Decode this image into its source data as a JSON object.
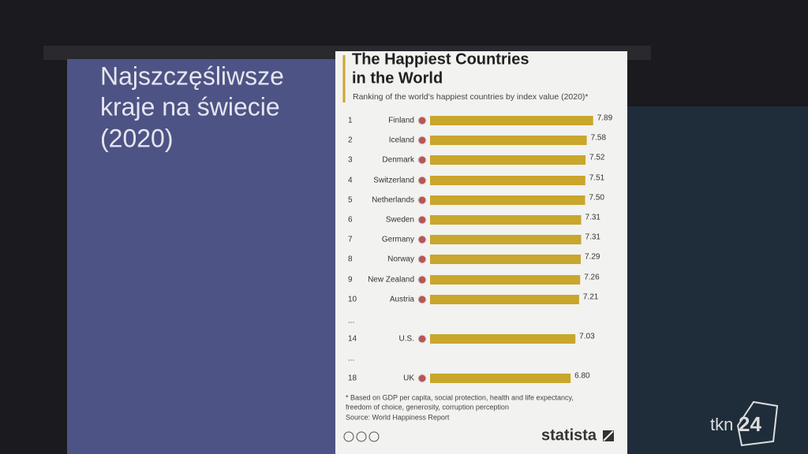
{
  "slide": {
    "title_lines": [
      "Najszczęśliwsze",
      "kraje na świecie",
      "(2020)"
    ]
  },
  "chart_data": {
    "type": "bar",
    "orientation": "horizontal",
    "title_lines": [
      "The Happiest Countries",
      "in the World"
    ],
    "subtitle": "Ranking of the world's happiest countries by index value (2020)*",
    "ranks": [
      "1",
      "2",
      "3",
      "4",
      "5",
      "6",
      "7",
      "8",
      "9",
      "10",
      "14",
      "18"
    ],
    "categories": [
      "Finland",
      "Iceland",
      "Denmark",
      "Switzerland",
      "Netherlands",
      "Sweden",
      "Germany",
      "Norway",
      "New Zealand",
      "Austria",
      "U.S.",
      "UK"
    ],
    "values": [
      7.89,
      7.58,
      7.52,
      7.51,
      7.5,
      7.31,
      7.31,
      7.29,
      7.26,
      7.21,
      7.03,
      6.8
    ],
    "value_labels": [
      "7.89",
      "7.58",
      "7.52",
      "7.51",
      "7.50",
      "7.31",
      "7.31",
      "7.29",
      "7.26",
      "7.21",
      "7.03",
      "6.80"
    ],
    "ellipsis": "...",
    "color": "#c9a62c",
    "footnote_lines": [
      "* Based on GDP per capita, social protection, health and life expectancy,",
      "freedom of choice, generosity, corruption perception"
    ],
    "source": "Source: World Happiness Report",
    "brand": "statista"
  },
  "logo": {
    "prefix": "tkn",
    "number": "24"
  }
}
